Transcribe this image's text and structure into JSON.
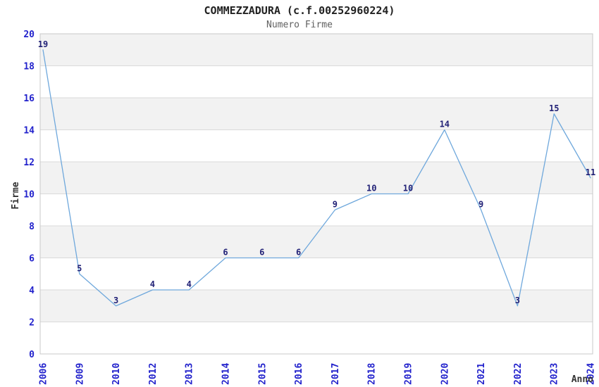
{
  "header": {
    "title": "COMMEZZADURA (c.f.00252960224)",
    "subtitle": "Numero Firme"
  },
  "chart_data": {
    "type": "line",
    "title": "COMMEZZADURA (c.f.00252960224)",
    "subtitle": "Numero Firme",
    "xlabel": "Anno",
    "ylabel": "Firme",
    "categories": [
      "2006",
      "2009",
      "2010",
      "2012",
      "2013",
      "2014",
      "2015",
      "2016",
      "2017",
      "2018",
      "2019",
      "2020",
      "2021",
      "2022",
      "2023",
      "2024"
    ],
    "values": [
      19,
      5,
      3,
      4,
      4,
      6,
      6,
      6,
      9,
      10,
      10,
      14,
      9,
      3,
      15,
      11
    ],
    "point_labels": [
      "19",
      "5",
      "3",
      "4",
      "4",
      "6",
      "6",
      "6",
      "9",
      "10",
      "10",
      "14",
      "9",
      "3",
      "15",
      "11"
    ],
    "ylim": [
      0,
      20
    ],
    "y_tick_step": 2,
    "y_ticks": [
      0,
      2,
      4,
      6,
      8,
      10,
      12,
      14,
      16,
      18,
      20
    ],
    "grid": "horizontal-bands-every-2",
    "legend": "none"
  },
  "colors": {
    "background": "#ffffff",
    "line": "#6fa8dc",
    "tick_label": "#2222cc",
    "point_label": "#222277",
    "band_fill": "#f2f2f2",
    "gridline": "#dadada",
    "plot_border": "#c8c8c8",
    "title": "#222222",
    "subtitle": "#606060",
    "axis_title": "#333333"
  }
}
